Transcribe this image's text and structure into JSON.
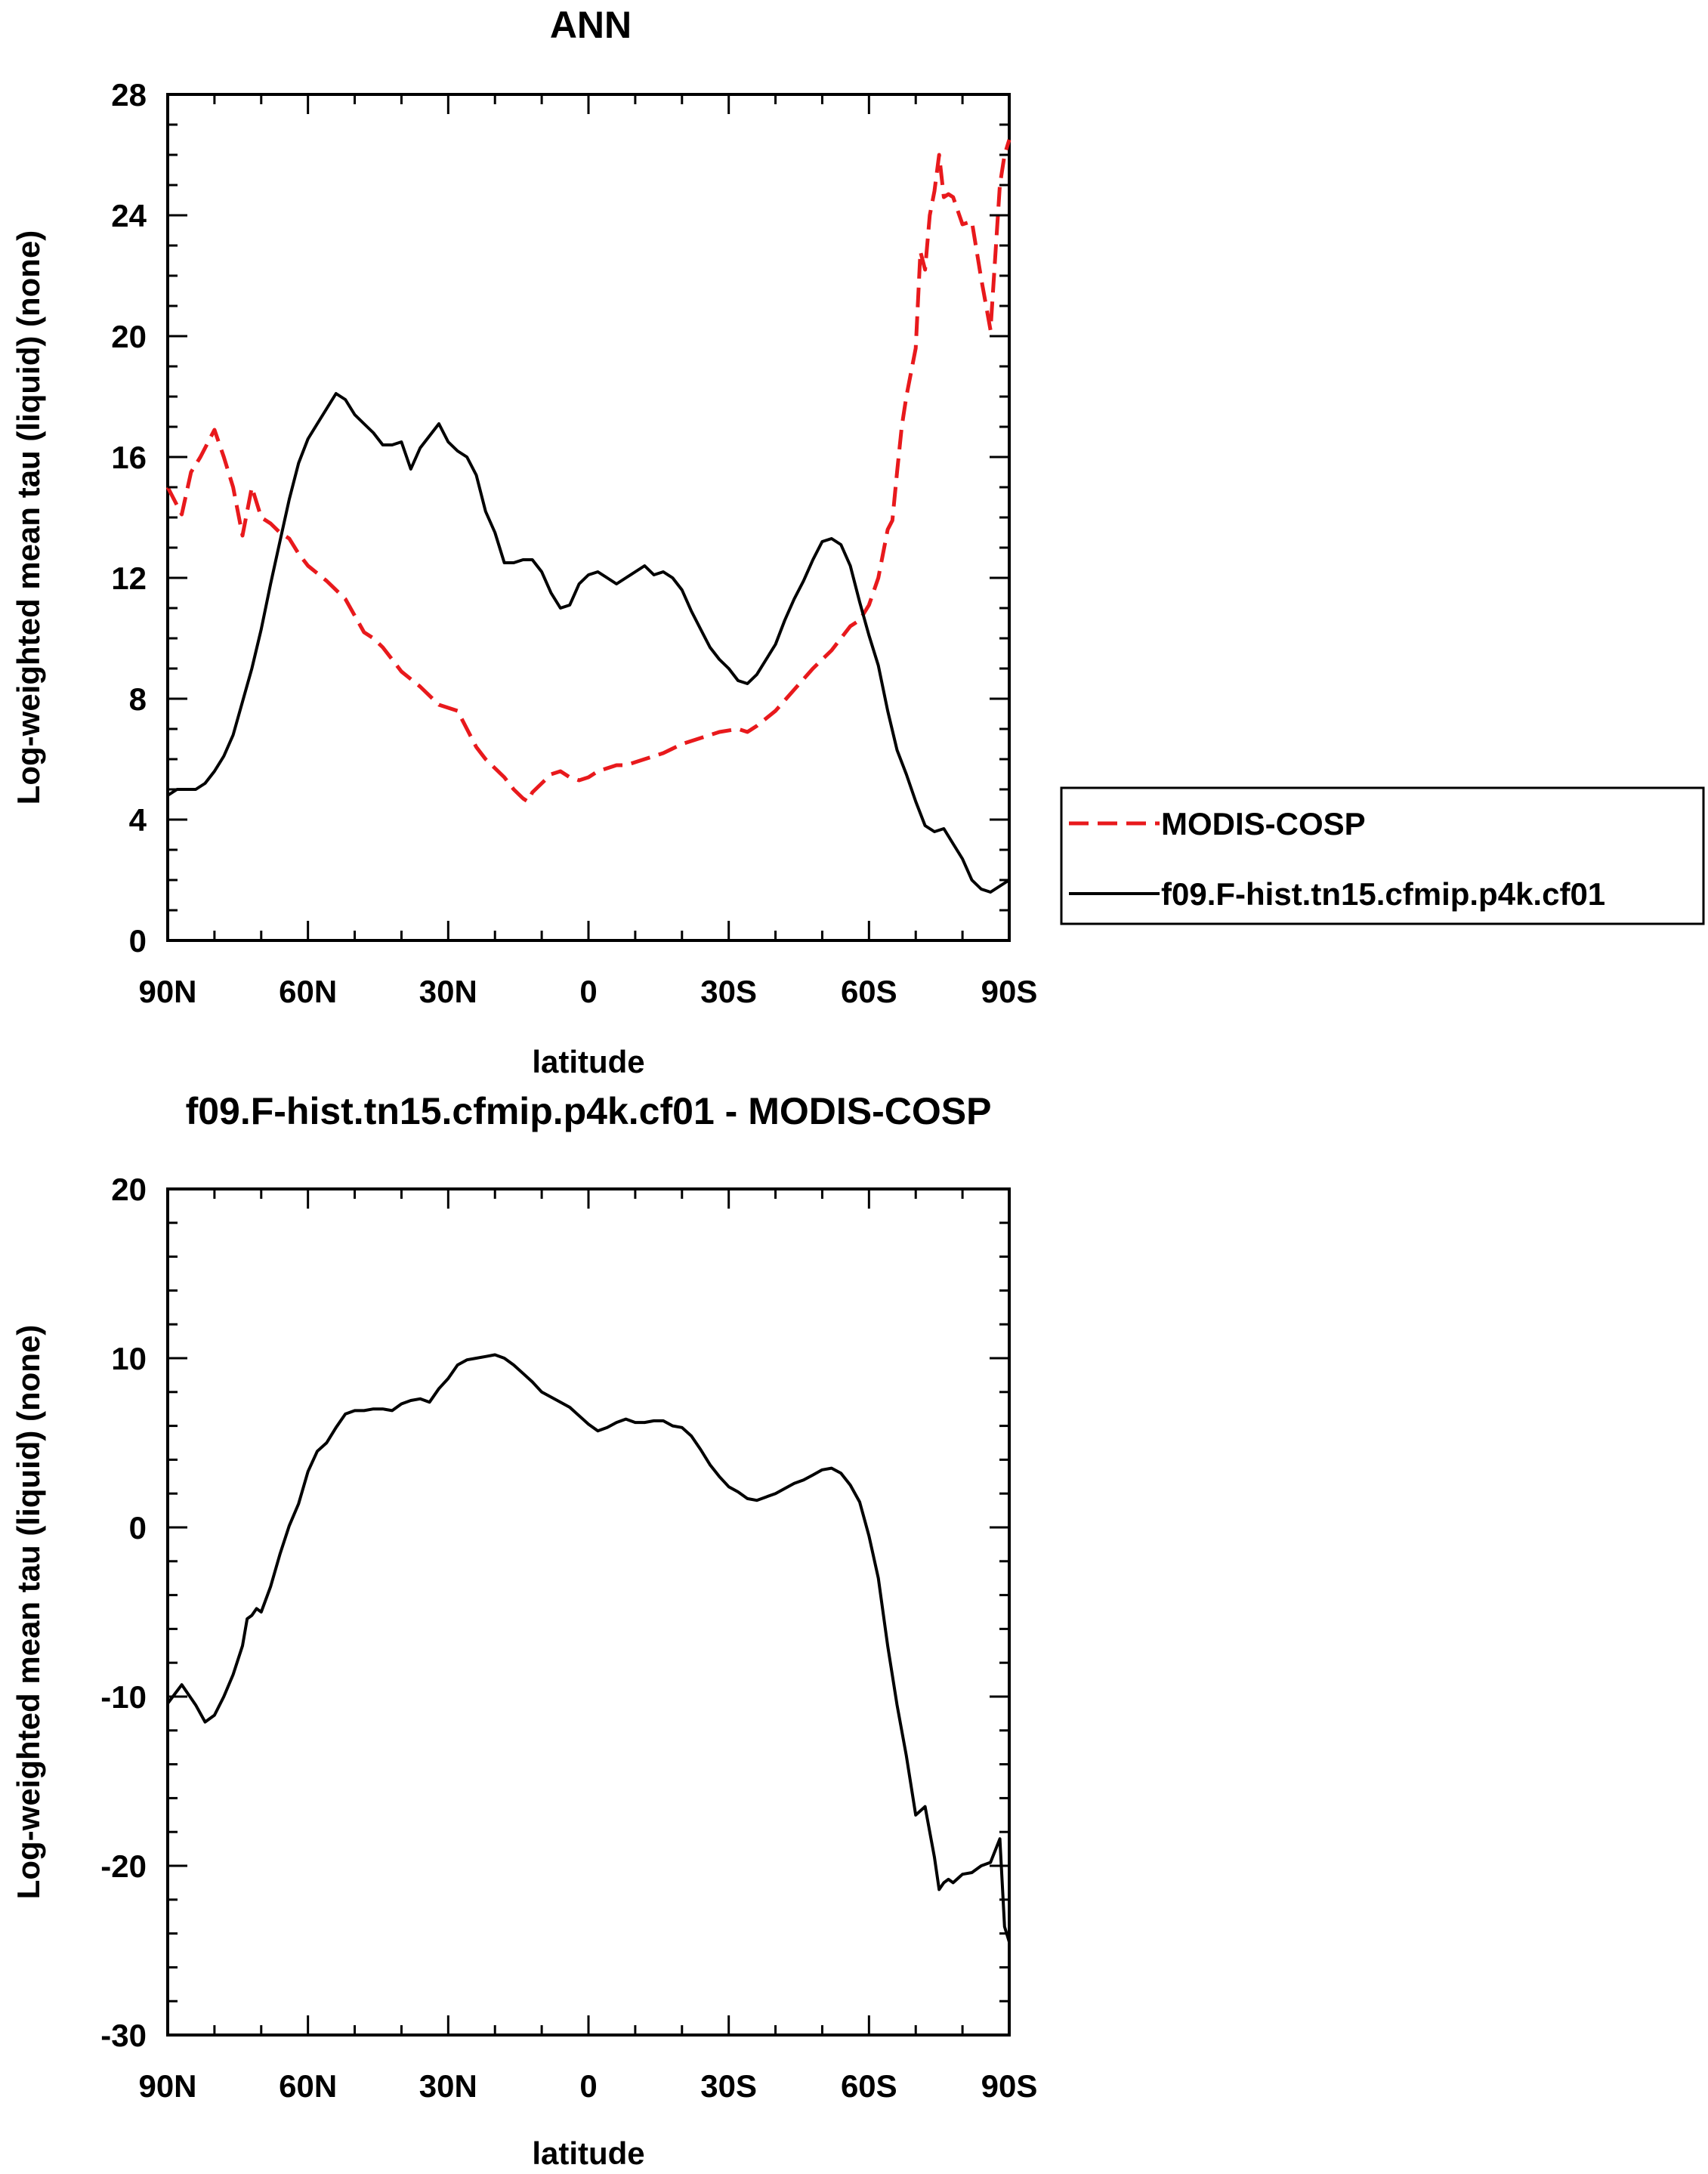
{
  "chart_data": [
    {
      "type": "line",
      "title": "ANN",
      "xlabel": "latitude",
      "ylabel": "Log-weighted mean tau (liquid) (none)",
      "xlim": [
        90,
        -90
      ],
      "ylim": [
        0,
        28
      ],
      "xticks": [
        90,
        60,
        30,
        0,
        -30,
        -60,
        -90
      ],
      "xtick_labels": [
        "90N",
        "60N",
        "30N",
        "0",
        "30S",
        "60S",
        "90S"
      ],
      "yticks": [
        0,
        4,
        8,
        12,
        16,
        20,
        24,
        28
      ],
      "ytick_labels": [
        "0",
        "4",
        "8",
        "12",
        "16",
        "20",
        "24",
        "28"
      ],
      "legend_position": "right",
      "series": [
        {
          "name": "MODIS-COSP",
          "color": "#e8191c",
          "dash": "dashed",
          "x": [
            90,
            87,
            85,
            83,
            80,
            78,
            76,
            74,
            72,
            70,
            68,
            66,
            64,
            62,
            60,
            56,
            52,
            48,
            46,
            44,
            42,
            40,
            36,
            32,
            28,
            26,
            24,
            22,
            20,
            18,
            16,
            14,
            13,
            12,
            10,
            8,
            6,
            4,
            2,
            0,
            -2,
            -4,
            -6,
            -8,
            -10,
            -12,
            -16,
            -20,
            -24,
            -28,
            -32,
            -34,
            -36,
            -40,
            -44,
            -48,
            -52,
            -56,
            -58,
            -60,
            -62,
            -64,
            -65,
            -66,
            -67,
            -68,
            -70,
            -71,
            -72,
            -73,
            -74,
            -75,
            -76,
            -77,
            -78,
            -80,
            -82,
            -84,
            -86,
            -88,
            -89,
            -90
          ],
          "values": [
            15.0,
            14.1,
            15.5,
            16.0,
            16.9,
            16.0,
            15.0,
            13.4,
            15.0,
            14.0,
            13.8,
            13.5,
            13.3,
            12.8,
            12.4,
            11.9,
            11.3,
            10.2,
            10.0,
            9.7,
            9.3,
            8.9,
            8.4,
            7.8,
            7.6,
            7.0,
            6.4,
            6.0,
            5.7,
            5.4,
            5.0,
            4.7,
            4.6,
            4.9,
            5.2,
            5.5,
            5.6,
            5.4,
            5.3,
            5.4,
            5.6,
            5.7,
            5.8,
            5.8,
            5.9,
            6.0,
            6.2,
            6.5,
            6.7,
            6.9,
            7.0,
            6.9,
            7.1,
            7.6,
            8.3,
            9.0,
            9.6,
            10.4,
            10.6,
            11.1,
            12.0,
            13.6,
            13.9,
            15.5,
            17.0,
            18.0,
            19.6,
            22.8,
            22.2,
            24.0,
            24.8,
            26.0,
            24.6,
            24.7,
            24.6,
            23.7,
            23.8,
            21.9,
            20.2,
            25.0,
            26.0,
            26.5
          ]
        },
        {
          "name": "f09.F-hist.tn15.cfmip.p4k.cf01",
          "color": "#000000",
          "dash": "solid",
          "x": [
            90,
            88,
            86,
            84,
            82,
            80,
            78,
            76,
            74,
            72,
            70,
            68,
            66,
            64,
            62,
            60,
            58,
            56,
            54,
            52,
            50,
            48,
            46,
            44,
            42,
            40,
            38,
            36,
            34,
            32,
            30,
            28,
            26,
            24,
            22,
            20,
            18,
            16,
            14,
            12,
            10,
            8,
            6,
            4,
            2,
            0,
            -2,
            -4,
            -6,
            -8,
            -10,
            -12,
            -14,
            -16,
            -18,
            -20,
            -22,
            -24,
            -26,
            -28,
            -30,
            -32,
            -34,
            -36,
            -38,
            -40,
            -42,
            -44,
            -46,
            -48,
            -50,
            -52,
            -54,
            -56,
            -58,
            -60,
            -62,
            -64,
            -66,
            -68,
            -70,
            -72,
            -74,
            -76,
            -78,
            -80,
            -82,
            -84,
            -86,
            -88,
            -90
          ],
          "values": [
            4.8,
            5.0,
            5.0,
            5.0,
            5.2,
            5.6,
            6.1,
            6.8,
            7.9,
            9.0,
            10.3,
            11.8,
            13.2,
            14.6,
            15.8,
            16.6,
            17.1,
            17.6,
            18.1,
            17.9,
            17.4,
            17.1,
            16.8,
            16.4,
            16.4,
            16.5,
            15.6,
            16.3,
            16.7,
            17.1,
            16.5,
            16.2,
            16.0,
            15.4,
            14.2,
            13.5,
            12.5,
            12.5,
            12.6,
            12.6,
            12.2,
            11.5,
            11.0,
            11.1,
            11.8,
            12.1,
            12.2,
            12.0,
            11.8,
            12.0,
            12.2,
            12.4,
            12.1,
            12.2,
            12.0,
            11.6,
            10.9,
            10.3,
            9.7,
            9.3,
            9.0,
            8.6,
            8.5,
            8.8,
            9.3,
            9.8,
            10.6,
            11.3,
            11.9,
            12.6,
            13.2,
            13.3,
            13.1,
            12.4,
            11.2,
            10.1,
            9.1,
            7.6,
            6.3,
            5.5,
            4.6,
            3.8,
            3.6,
            3.7,
            3.2,
            2.7,
            2.0,
            1.7,
            1.6,
            1.8,
            2.0
          ]
        }
      ]
    },
    {
      "type": "line",
      "title": "f09.F-hist.tn15.cfmip.p4k.cf01 - MODIS-COSP",
      "xlabel": "latitude",
      "ylabel": "Log-weighted mean tau (liquid) (none)",
      "xlim": [
        90,
        -90
      ],
      "ylim": [
        -30,
        20
      ],
      "xticks": [
        90,
        60,
        30,
        0,
        -30,
        -60,
        -90
      ],
      "xtick_labels": [
        "90N",
        "60N",
        "30N",
        "0",
        "30S",
        "60S",
        "90S"
      ],
      "yticks": [
        -30,
        -20,
        -10,
        0,
        10,
        20
      ],
      "ytick_labels": [
        "-30",
        "-20",
        "-10",
        "0",
        "10",
        "20"
      ],
      "series": [
        {
          "color": "#000000",
          "dash": "solid",
          "x": [
            90,
            87,
            84,
            82,
            80,
            78,
            76,
            74,
            73,
            72,
            71,
            70,
            68,
            66,
            64,
            62,
            60,
            58,
            56,
            54,
            52,
            50,
            48,
            46,
            44,
            42,
            40,
            38,
            36,
            34,
            32,
            30,
            28,
            26,
            24,
            22,
            20,
            18,
            16,
            14,
            12,
            10,
            8,
            6,
            4,
            2,
            0,
            -2,
            -4,
            -6,
            -8,
            -10,
            -12,
            -14,
            -16,
            -18,
            -20,
            -22,
            -24,
            -26,
            -28,
            -30,
            -32,
            -34,
            -36,
            -38,
            -40,
            -42,
            -44,
            -46,
            -48,
            -50,
            -52,
            -54,
            -56,
            -58,
            -60,
            -62,
            -64,
            -66,
            -68,
            -70,
            -72,
            -73,
            -74,
            -75,
            -76,
            -77,
            -78,
            -80,
            -82,
            -84,
            -86,
            -88,
            -89,
            -90
          ],
          "values": [
            -10.4,
            -9.3,
            -10.5,
            -11.5,
            -11.1,
            -10.0,
            -8.7,
            -7.0,
            -5.4,
            -5.2,
            -4.8,
            -5.0,
            -3.5,
            -1.6,
            0.1,
            1.4,
            3.3,
            4.5,
            5.0,
            5.9,
            6.7,
            6.9,
            6.9,
            7.0,
            7.0,
            6.9,
            7.3,
            7.5,
            7.6,
            7.4,
            8.2,
            8.8,
            9.6,
            9.9,
            10.0,
            10.1,
            10.2,
            10.0,
            9.6,
            9.1,
            8.6,
            8.0,
            7.7,
            7.4,
            7.1,
            6.6,
            6.1,
            5.7,
            5.9,
            6.2,
            6.4,
            6.2,
            6.2,
            6.3,
            6.3,
            6.0,
            5.9,
            5.4,
            4.6,
            3.7,
            3.0,
            2.4,
            2.1,
            1.7,
            1.6,
            1.8,
            2.0,
            2.3,
            2.6,
            2.8,
            3.1,
            3.4,
            3.5,
            3.2,
            2.5,
            1.5,
            -0.5,
            -3.0,
            -7.0,
            -10.5,
            -13.5,
            -17.0,
            -16.5,
            -18.0,
            -19.5,
            -21.4,
            -21.0,
            -20.8,
            -21.0,
            -20.5,
            -20.4,
            -20.0,
            -19.8,
            -18.4,
            -23.6,
            -24.5
          ]
        }
      ]
    }
  ]
}
